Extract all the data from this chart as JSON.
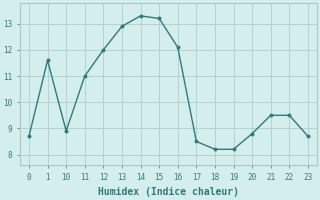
{
  "x_labels": [
    "0",
    "1",
    "10",
    "11",
    "12",
    "13",
    "14",
    "15",
    "16",
    "17",
    "18",
    "19",
    "20",
    "21",
    "22",
    "23"
  ],
  "y": [
    8.7,
    11.6,
    8.9,
    11.0,
    12.0,
    12.9,
    13.3,
    13.2,
    12.1,
    8.5,
    8.2,
    8.2,
    8.8,
    9.5,
    9.5,
    8.7
  ],
  "line_color": "#2d7d78",
  "marker": "o",
  "marker_size": 1.8,
  "bg_color": "#d4eded",
  "grid_color": "#a8c8c8",
  "xlabel": "Humidex (Indice chaleur)",
  "xlabel_fontsize": 7,
  "ylabel_ticks": [
    8,
    9,
    10,
    11,
    12,
    13
  ],
  "ylim": [
    7.6,
    13.8
  ],
  "tick_fontsize": 5.5,
  "linewidth": 1.0
}
